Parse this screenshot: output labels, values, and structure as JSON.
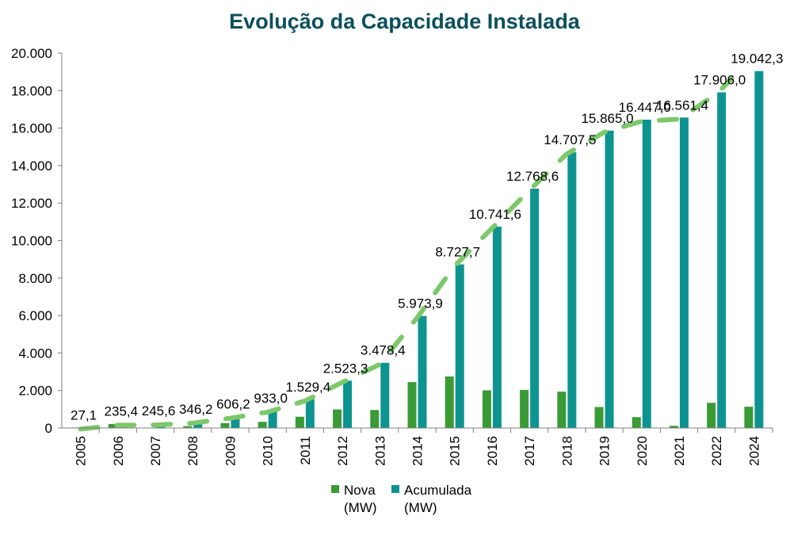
{
  "chart_data": {
    "type": "bar",
    "title": "Evolução da Capacidade Instalada",
    "xlabel": "",
    "ylabel": "",
    "ylim": [
      0,
      20000
    ],
    "yticks": [
      "0",
      "2.000",
      "4.000",
      "6.000",
      "8.000",
      "10.000",
      "12.000",
      "14.000",
      "16.000",
      "18.000",
      "20.000"
    ],
    "categories": [
      "2005",
      "2006",
      "2007",
      "2008",
      "2009",
      "2010",
      "2011",
      "2012",
      "2013",
      "2014",
      "2015",
      "2016",
      "2017",
      "2018",
      "2019",
      "2020",
      "2021",
      "2022",
      "2024"
    ],
    "series": [
      {
        "name": "Nova",
        "unit": "(MW)",
        "color": "#3a9a35",
        "values": [
          27,
          210,
          10,
          100,
          260,
          330,
          600,
          990,
          960,
          2450,
          2750,
          2010,
          2030,
          1940,
          1120,
          580,
          115,
          1345,
          1135
        ]
      },
      {
        "name": "Acumulada",
        "unit": "(MW)",
        "color": "#0e9490",
        "values": [
          27.1,
          235.4,
          245.6,
          346.2,
          606.2,
          933.0,
          1529.4,
          2523.3,
          3478.4,
          5973.9,
          8727.7,
          10741.6,
          12768.6,
          14707.5,
          15865.0,
          16447.0,
          16561.4,
          17906.0,
          19042.3
        ]
      }
    ],
    "data_labels": [
      "27,1",
      "235,4",
      "245,6",
      "346,2",
      "606,2",
      "933,0",
      "1.529,4",
      "2.523,3",
      "3.478,4",
      "5.973,9",
      "8.727,7",
      "10.741,6",
      "12.768,6",
      "14.707,5",
      "15.865,0",
      "16.447,0",
      "16.561,4",
      "17.906,0",
      "19.042,3"
    ],
    "trend_line": {
      "style": "dashed",
      "color": "#7cc86a"
    },
    "grid": false,
    "legend": "bottom"
  }
}
